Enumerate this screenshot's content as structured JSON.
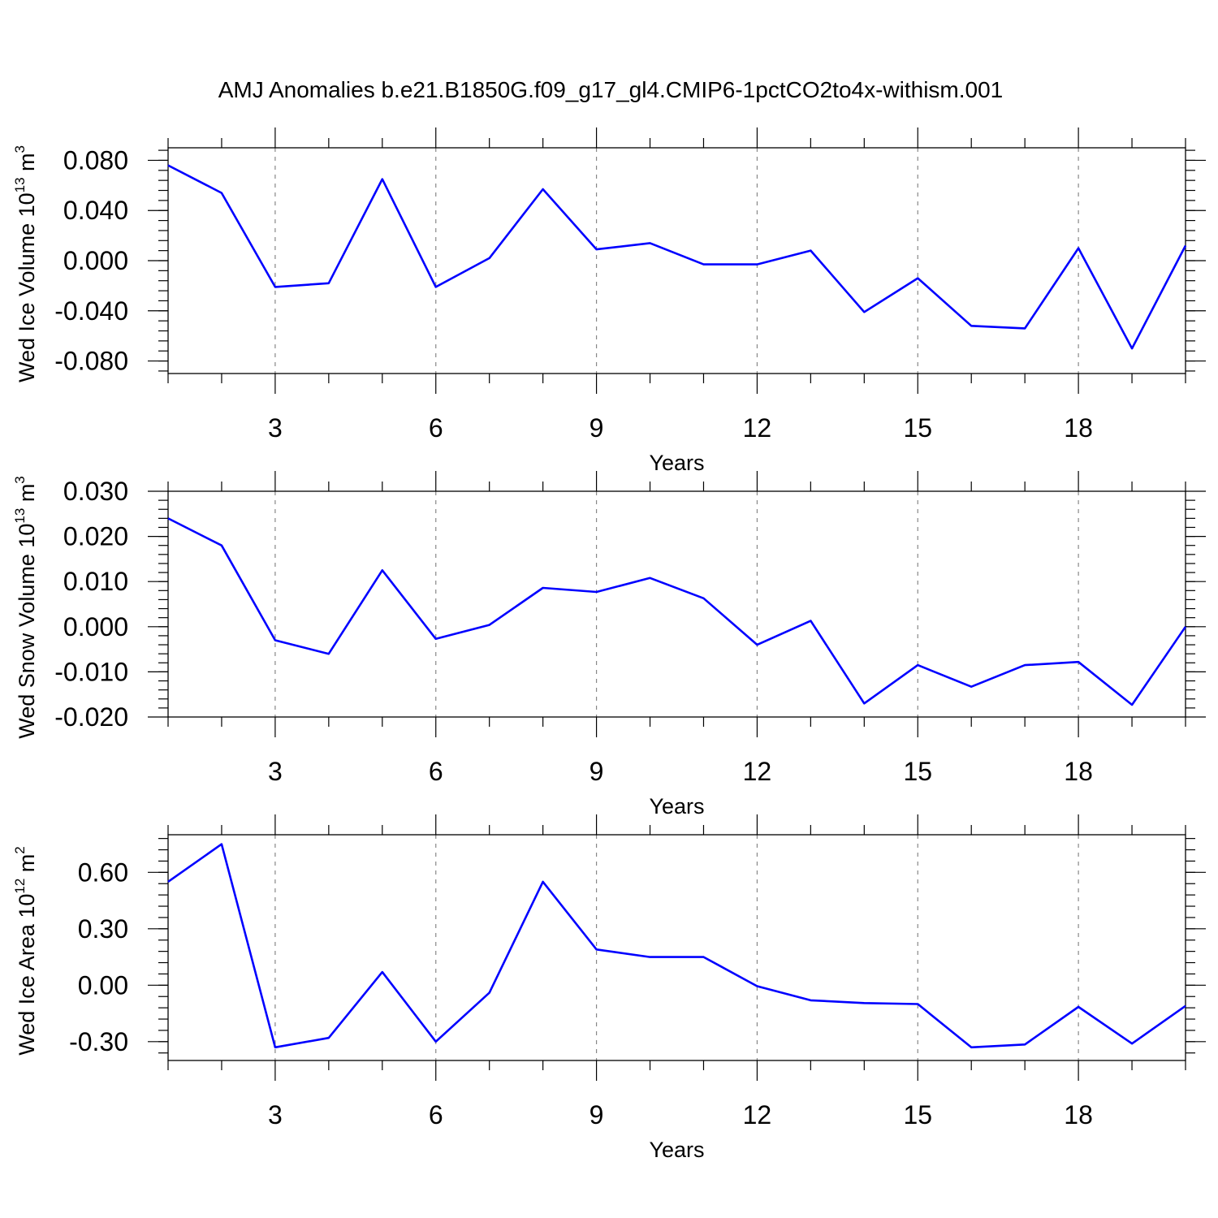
{
  "title": "AMJ Anomalies b.e21.B1850G.f09_g17_gl4.CMIP6-1pctCO2to4x-withism.001",
  "colors": {
    "line": "#0000ff",
    "frame": "#000000",
    "grid": "#888888"
  },
  "chart_data": [
    {
      "type": "line",
      "xlabel": "Years",
      "ylabel": {
        "base": "Wed Ice Volume 10",
        "exp": "13",
        "unit": " m",
        "unit_exp": "3"
      },
      "xlim": [
        1,
        20
      ],
      "ylim": [
        -0.09,
        0.09
      ],
      "xticks": [
        3,
        6,
        9,
        12,
        15,
        18
      ],
      "xtick_labels": [
        "3",
        "6",
        "9",
        "12",
        "15",
        "18"
      ],
      "xminor": [
        1,
        2,
        4,
        5,
        7,
        8,
        10,
        11,
        13,
        14,
        16,
        17,
        19,
        20
      ],
      "yticks": [
        -0.08,
        -0.04,
        0.0,
        0.04,
        0.08
      ],
      "ytick_labels": [
        "-0.080",
        "-0.040",
        "0.000",
        "0.040",
        "0.080"
      ],
      "yminor_step": 0.008,
      "grid": "vertical-dashed",
      "x": [
        1,
        2,
        3,
        4,
        5,
        6,
        7,
        8,
        9,
        10,
        11,
        12,
        13,
        14,
        15,
        16,
        17,
        18,
        19,
        20
      ],
      "values": [
        0.076,
        0.054,
        -0.021,
        -0.018,
        0.065,
        -0.021,
        0.002,
        0.057,
        0.009,
        0.014,
        -0.003,
        -0.003,
        0.008,
        -0.041,
        -0.014,
        -0.052,
        -0.054,
        0.01,
        -0.07,
        0.012
      ]
    },
    {
      "type": "line",
      "xlabel": "Years",
      "ylabel": {
        "base": "Wed Snow Volume 10",
        "exp": "13",
        "unit": " m",
        "unit_exp": "3"
      },
      "xlim": [
        1,
        20
      ],
      "ylim": [
        -0.02,
        0.03
      ],
      "xticks": [
        3,
        6,
        9,
        12,
        15,
        18
      ],
      "xtick_labels": [
        "3",
        "6",
        "9",
        "12",
        "15",
        "18"
      ],
      "xminor": [
        1,
        2,
        4,
        5,
        7,
        8,
        10,
        11,
        13,
        14,
        16,
        17,
        19,
        20
      ],
      "yticks": [
        -0.02,
        -0.01,
        0.0,
        0.01,
        0.02,
        0.03
      ],
      "ytick_labels": [
        "-0.020",
        "-0.010",
        "0.000",
        "0.010",
        "0.020",
        "0.030"
      ],
      "yminor_step": 0.002,
      "grid": "vertical-dashed",
      "x": [
        1,
        2,
        3,
        4,
        5,
        6,
        7,
        8,
        9,
        10,
        11,
        12,
        13,
        14,
        15,
        16,
        17,
        18,
        19,
        20
      ],
      "values": [
        0.024,
        0.018,
        -0.003,
        -0.006,
        0.0125,
        -0.0027,
        0.0004,
        0.0086,
        0.0077,
        0.0108,
        0.0063,
        -0.004,
        0.0013,
        -0.017,
        -0.0085,
        -0.0133,
        -0.0085,
        -0.0078,
        -0.0173,
        0.0
      ]
    },
    {
      "type": "line",
      "xlabel": "Years",
      "ylabel": {
        "base": "Wed Ice Area 10",
        "exp": "12",
        "unit": " m",
        "unit_exp": "2"
      },
      "xlim": [
        1,
        20
      ],
      "ylim": [
        -0.4,
        0.8
      ],
      "xticks": [
        3,
        6,
        9,
        12,
        15,
        18
      ],
      "xtick_labels": [
        "3",
        "6",
        "9",
        "12",
        "15",
        "18"
      ],
      "xminor": [
        1,
        2,
        4,
        5,
        7,
        8,
        10,
        11,
        13,
        14,
        16,
        17,
        19,
        20
      ],
      "yticks": [
        -0.3,
        0.0,
        0.3,
        0.6
      ],
      "ytick_labels": [
        "-0.30",
        "0.00",
        "0.30",
        "0.60"
      ],
      "yminor_step": 0.06,
      "grid": "vertical-dashed",
      "x": [
        1,
        2,
        3,
        4,
        5,
        6,
        7,
        8,
        9,
        10,
        11,
        12,
        13,
        14,
        15,
        16,
        17,
        18,
        19,
        20
      ],
      "values": [
        0.55,
        0.75,
        -0.33,
        -0.28,
        0.07,
        -0.3,
        -0.04,
        0.55,
        0.19,
        0.15,
        0.15,
        -0.005,
        -0.08,
        -0.095,
        -0.1,
        -0.33,
        -0.315,
        -0.115,
        -0.31,
        -0.11
      ]
    }
  ]
}
